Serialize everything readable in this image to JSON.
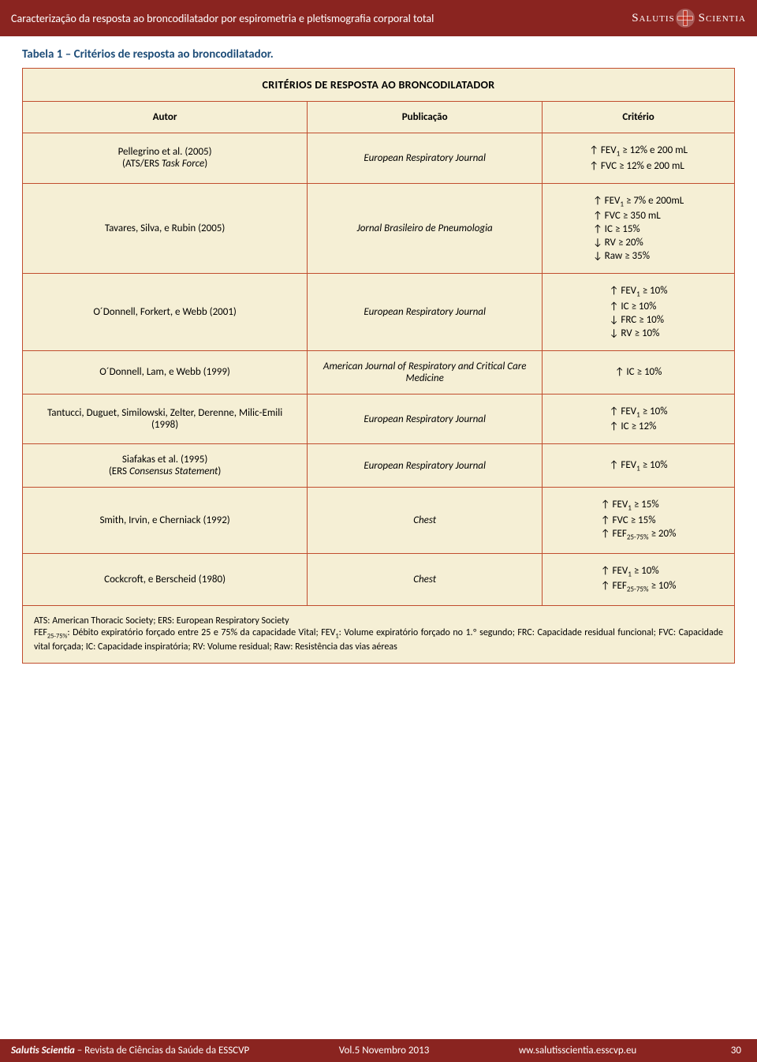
{
  "colors": {
    "header_bg": "#8a2420",
    "footer_bg": "#8a2420",
    "table_bg": "#f5efd5",
    "table_border": "#c14d2e",
    "caption_color": "#1f4e79"
  },
  "header": {
    "title": "Caracterização da resposta ao broncodilatador por espirometria e pletismografia corporal total",
    "logo_text_left": "Salutis",
    "logo_text_right": "Scientia"
  },
  "caption": "Tabela 1 – Critérios de resposta ao broncodilatador.",
  "table_title": "CRITÉRIOS DE RESPOSTA AO BRONCODILATADOR",
  "columns": {
    "c1": "Autor",
    "c2": "Publicação",
    "c3": "Critério"
  },
  "rows": [
    {
      "author": "Pellegrino et al. (2005)",
      "author_sub": "(ATS/ERS Task Force)",
      "pub": "European Respiratory Journal",
      "crit": [
        "↑ FEV₁ ≥ 12% e 200 mL",
        "↑ FVC ≥ 12% e 200 mL"
      ]
    },
    {
      "author": "Tavares, Silva, e Rubin (2005)",
      "pub": "Jornal Brasileiro de Pneumologia",
      "crit": [
        "↑ FEV₁ ≥ 7% e 200mL",
        "↑ FVC ≥ 350 mL",
        "↑ IC ≥ 15%",
        "↓ RV ≥ 20%",
        "↓ Raw ≥ 35%"
      ]
    },
    {
      "author": "O´Donnell, Forkert, e Webb (2001)",
      "pub": "European Respiratory Journal",
      "crit": [
        "↑ FEV₁ ≥ 10%",
        "↑ IC ≥ 10%",
        "↓ FRC ≥ 10%",
        "↓ RV ≥ 10%"
      ]
    },
    {
      "author": "O´Donnell, Lam, e Webb (1999)",
      "pub": "American Journal of Respiratory and Critical Care Medicine",
      "crit": [
        "↑ IC ≥ 10%"
      ]
    },
    {
      "author": "Tantucci, Duguet, Similowski, Zelter, Derenne, Milic-Emili (1998)",
      "pub": "European Respiratory Journal",
      "crit": [
        "↑ FEV₁ ≥ 10%",
        "↑ IC ≥ 12%"
      ]
    },
    {
      "author": "Siafakas et al. (1995)",
      "author_sub": "(ERS Consensus Statement)",
      "pub": "European Respiratory Journal",
      "crit": [
        "↑ FEV₁ ≥ 10%"
      ]
    },
    {
      "author": "Smith, Irvin, e Cherniack (1992)",
      "pub": "Chest",
      "crit": [
        "↑ FEV₁ ≥ 15%",
        "↑ FVC ≥ 15%",
        "↑ FEF₂₅₋₇₅% ≥ 20%"
      ]
    },
    {
      "author": "Cockcroft, e Berscheid (1980)",
      "pub": "Chest",
      "crit": [
        "↑ FEV₁ ≥ 10%",
        "↑ FEF₂₅₋₇₅% ≥ 10%"
      ]
    }
  ],
  "footnote": "ATS: American Thoracic Society; ERS: European Respiratory Society\nFEF₂₅₋₇₅%: Débito expiratório forçado entre 25 e 75% da capacidade Vital; FEV₁: Volume expiratório forçado no 1.º segundo; FRC: Capacidade residual funcional; FVC: Capacidade vital forçada; IC: Capacidade inspiratória; RV: Volume residual; Raw: Resistência das vias aéreas",
  "footer": {
    "left_bold": "Salutis Scientia",
    "left_rest": " – Revista de Ciências da Saúde da ESSCVP",
    "center": "Vol.5 Novembro 2013",
    "right": "ww.salutisscientia.esscvp.eu",
    "page": "30"
  }
}
